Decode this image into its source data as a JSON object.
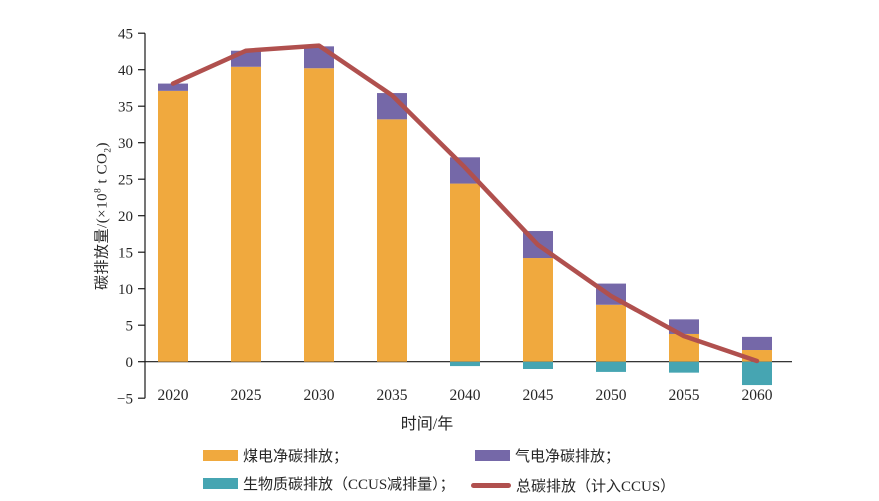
{
  "chart_data": {
    "type": "bar",
    "subtype": "stacked-bar-with-line",
    "title": "",
    "xlabel": "时间/年",
    "ylabel_text": "碳排放量/(×10^8 t CO_2)",
    "ylabel_parts": {
      "pre": "碳排放量/(×10",
      "sup": "8",
      "mid": " t CO",
      "sub": "2",
      "post": ")"
    },
    "categories": [
      "2020",
      "2025",
      "2030",
      "2035",
      "2040",
      "2045",
      "2050",
      "2055",
      "2060"
    ],
    "bar_series": [
      {
        "key": "coal",
        "name": "煤电净碳排放",
        "color": "#F0A93E",
        "values": [
          37.1,
          40.4,
          40.2,
          33.2,
          24.4,
          14.2,
          7.8,
          3.8,
          1.6
        ]
      },
      {
        "key": "gas",
        "name": "气电净碳排放",
        "color": "#7568A8",
        "values": [
          1.0,
          2.2,
          3.0,
          3.6,
          3.6,
          3.7,
          2.9,
          2.0,
          1.8
        ]
      },
      {
        "key": "biomass",
        "name": "生物质碳排放（CCUS减排量）",
        "color": "#46A5B2",
        "values": [
          0,
          0,
          0,
          0,
          -0.6,
          -1.0,
          -1.4,
          -1.5,
          -3.2
        ]
      }
    ],
    "line_series": {
      "key": "total",
      "name": "总碳排放（计入CCUS）",
      "color": "#B0504E",
      "values": [
        38.1,
        42.6,
        43.3,
        36.5,
        26.6,
        16.0,
        9.0,
        3.5,
        0.1
      ]
    },
    "ylim": [
      -5,
      45
    ],
    "ytick_step": 5,
    "ytick_labels": [
      "45",
      "40",
      "35",
      "30",
      "25",
      "20",
      "15",
      "10",
      "5",
      "0",
      "−5"
    ],
    "grid": false,
    "legend_position": "bottom",
    "stacked": true,
    "axis_color": "#1a1a1a"
  },
  "legend": {
    "items": [
      {
        "key": "coal",
        "label": "煤电净碳排放；",
        "color": "#F0A93E",
        "marker": "box"
      },
      {
        "key": "gas",
        "label": "气电净碳排放；",
        "color": "#7568A8",
        "marker": "box"
      },
      {
        "key": "biomass",
        "label": "生物质碳排放（CCUS减排量）；",
        "color": "#46A5B2",
        "marker": "box"
      },
      {
        "key": "total",
        "label": "总碳排放（计入CCUS）",
        "color": "#B0504E",
        "marker": "line"
      }
    ]
  }
}
